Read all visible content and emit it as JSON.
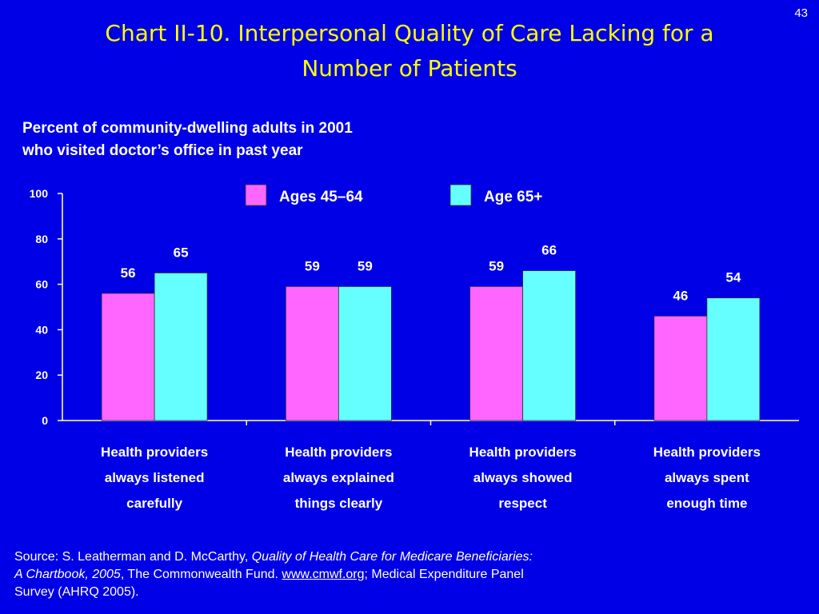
{
  "slide": {
    "number": "43",
    "title_line1": "Chart II-10. Interpersonal Quality of Care Lacking for a",
    "title_line2": "Number of Patients"
  },
  "subtitle": {
    "line1": "Percent of community-dwelling adults in 2001",
    "line2": "who visited doctor’s office in past year"
  },
  "source": {
    "prefix": "Source: S. Leatherman and D. McCarthy, ",
    "italic1": "Quality of Health Care for Medicare Beneficiaries:",
    "italic2": "A Chartbook, 2005",
    "mid": ", The Commonwealth Fund. ",
    "link": "www.cmwf.org",
    "suffix": "; Medical Expenditure Panel",
    "line3": "Survey (AHRQ 2005)."
  },
  "colors": {
    "background": "#0000E6",
    "title": "#FFFF00",
    "text": "#FFFFFF",
    "series1": "#FF66FF",
    "series2": "#66FFFF"
  },
  "chart_data": {
    "type": "bar",
    "title": "",
    "xlabel": "",
    "ylabel": "",
    "ylim": [
      0,
      100
    ],
    "yticks": [
      0,
      20,
      40,
      60,
      80,
      100
    ],
    "grid": false,
    "legend_position": "top",
    "categories": [
      [
        "Health providers",
        "always listened",
        "carefully"
      ],
      [
        "Health providers",
        "always explained",
        "things clearly"
      ],
      [
        "Health providers",
        "always showed",
        "respect"
      ],
      [
        "Health providers",
        "always spent",
        "enough time"
      ]
    ],
    "series": [
      {
        "name": "Ages 45–64",
        "color": "#FF66FF",
        "values": [
          56,
          59,
          59,
          46
        ]
      },
      {
        "name": "Age 65+",
        "color": "#66FFFF",
        "values": [
          65,
          59,
          66,
          54
        ]
      }
    ]
  }
}
